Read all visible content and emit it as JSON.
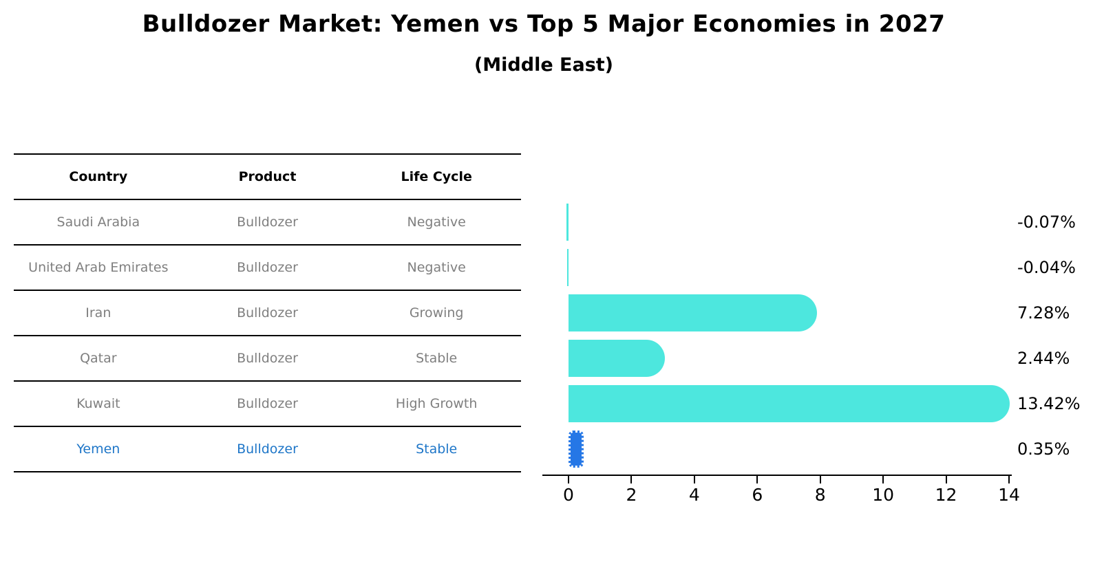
{
  "title": "Bulldozer Market: Yemen vs Top 5 Major Economies in 2027",
  "subtitle": "(Middle East)",
  "table": {
    "headers": [
      "Country",
      "Product",
      "Life Cycle"
    ],
    "rows": [
      {
        "country": "Saudi Arabia",
        "product": "Bulldozer",
        "life_cycle": "Negative",
        "highlight": false
      },
      {
        "country": "United Arab Emirates",
        "product": "Bulldozer",
        "life_cycle": "Negative",
        "highlight": false
      },
      {
        "country": "Iran",
        "product": "Bulldozer",
        "life_cycle": "Growing",
        "highlight": false
      },
      {
        "country": "Qatar",
        "product": "Bulldozer",
        "life_cycle": "Stable",
        "highlight": false
      },
      {
        "country": "Kuwait",
        "product": "Bulldozer",
        "life_cycle": "High Growth",
        "highlight": false
      },
      {
        "country": "Yemen",
        "product": "Bulldozer",
        "life_cycle": "Stable",
        "highlight": true
      }
    ]
  },
  "chart_data": {
    "type": "bar",
    "orientation": "horizontal",
    "title": "Bulldozer Market: Yemen vs Top 5 Major Economies in 2027",
    "subtitle": "(Middle East)",
    "categories": [
      "Saudi Arabia",
      "United Arab Emirates",
      "Iran",
      "Qatar",
      "Kuwait",
      "Yemen"
    ],
    "values": [
      -0.07,
      -0.04,
      7.28,
      2.44,
      13.42,
      0.35
    ],
    "value_labels": [
      "-0.07%",
      "-0.04%",
      "7.28%",
      "2.44%",
      "13.42%",
      "0.35%"
    ],
    "xlabel": "",
    "ylabel": "",
    "xlim": [
      0,
      14
    ],
    "x_ticks": [
      0,
      2,
      4,
      6,
      8,
      10,
      12,
      14
    ],
    "grid": false,
    "legend": "none",
    "bar_color": "#4de7de",
    "highlight_color": "#2577e6",
    "highlight_index": 5,
    "highlight_text_color": "#1e76c8"
  }
}
